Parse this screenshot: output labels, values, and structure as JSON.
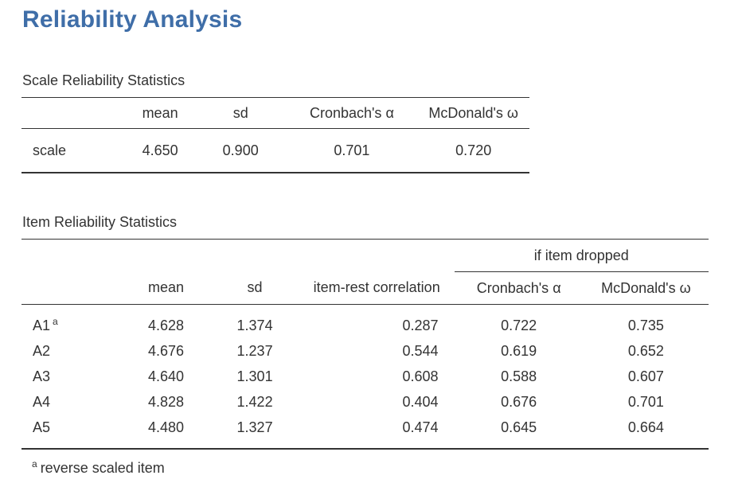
{
  "title": "Reliability Analysis",
  "scale_table": {
    "title": "Scale Reliability Statistics",
    "headers": [
      "",
      "mean",
      "sd",
      "Cronbach's α",
      "McDonald's ω"
    ],
    "rows": [
      {
        "label": "scale",
        "mean": "4.650",
        "sd": "0.900",
        "alpha": "0.701",
        "omega": "0.720"
      }
    ]
  },
  "item_table": {
    "title": "Item Reliability Statistics",
    "group_header": "if item dropped",
    "headers": [
      "",
      "mean",
      "sd",
      "item-rest correlation",
      "Cronbach's α",
      "McDonald's ω"
    ],
    "rows": [
      {
        "label": "A1",
        "note": "a",
        "mean": "4.628",
        "sd": "1.374",
        "irc": "0.287",
        "alpha": "0.722",
        "omega": "0.735"
      },
      {
        "label": "A2",
        "note": "",
        "mean": "4.676",
        "sd": "1.237",
        "irc": "0.544",
        "alpha": "0.619",
        "omega": "0.652"
      },
      {
        "label": "A3",
        "note": "",
        "mean": "4.640",
        "sd": "1.301",
        "irc": "0.608",
        "alpha": "0.588",
        "omega": "0.607"
      },
      {
        "label": "A4",
        "note": "",
        "mean": "4.828",
        "sd": "1.422",
        "irc": "0.404",
        "alpha": "0.676",
        "omega": "0.701"
      },
      {
        "label": "A5",
        "note": "",
        "mean": "4.480",
        "sd": "1.327",
        "irc": "0.474",
        "alpha": "0.645",
        "omega": "0.664"
      }
    ]
  },
  "footnote": {
    "marker": "a",
    "text": "reverse scaled item"
  },
  "colors": {
    "title": "#3f6ea8",
    "text": "#333333",
    "rule": "#333333"
  }
}
